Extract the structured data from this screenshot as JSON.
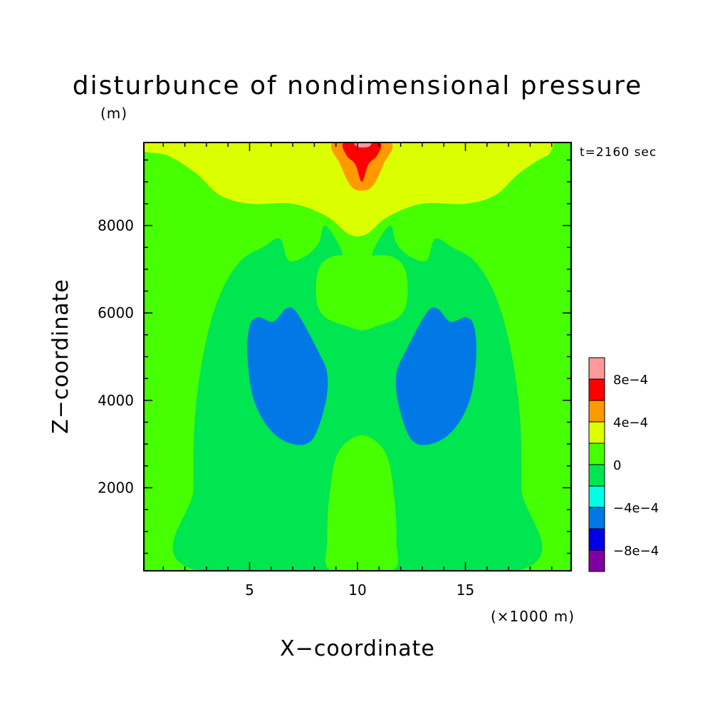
{
  "chart_data": {
    "type": "heatmap",
    "title": "disturbunce of nondimensional pressure",
    "subtitle": "(m)",
    "xlabel": "X−coordinate",
    "ylabel": "Z−coordinate",
    "x_unit_label": "(×1000 m)",
    "time_label": "t=2160 sec",
    "xlim": [
      0.1,
      19.9
    ],
    "ylim": [
      100,
      9900
    ],
    "x_ticks": [
      5,
      10,
      15
    ],
    "x_tick_labels": [
      "5",
      "10",
      "15"
    ],
    "y_ticks": [
      2000,
      4000,
      6000,
      8000
    ],
    "y_tick_labels": [
      "2000",
      "4000",
      "6000",
      "8000"
    ],
    "colorbar": {
      "levels": [
        -0.001,
        -0.0008,
        -0.0006,
        -0.0004,
        -0.0002,
        0,
        0.0002,
        0.0004,
        0.0006,
        0.0008,
        0.001
      ],
      "colors": [
        "#7f00a0",
        "#0000e6",
        "#0078e6",
        "#00ffe6",
        "#00e650",
        "#46ff00",
        "#dcff00",
        "#ff9900",
        "#ff0000",
        "#ff9999"
      ],
      "tick_values": [
        -0.0008,
        -0.0004,
        0,
        0.0004,
        0.0008
      ],
      "tick_labels": [
        "−8e−4",
        "−4e−4",
        "0",
        "4e−4",
        "8e−4"
      ]
    },
    "regions": [
      {
        "level_range": [
          0,
          0.0002
        ],
        "label": "0 to 2e-4 (green)",
        "points": [
          [
            0.1,
            9900
          ],
          [
            0.1,
            9700
          ],
          [
            1.2,
            9600
          ],
          [
            2.5,
            9200
          ],
          [
            3.6,
            8700
          ],
          [
            5,
            8500
          ],
          [
            7,
            8500
          ],
          [
            8.6,
            8200
          ],
          [
            9.6,
            7800
          ],
          [
            10.4,
            7800
          ],
          [
            11.4,
            8200
          ],
          [
            13,
            8500
          ],
          [
            15,
            8500
          ],
          [
            16.4,
            8700
          ],
          [
            17.5,
            9200
          ],
          [
            18.8,
            9600
          ],
          [
            19.9,
            9700
          ],
          [
            19.9,
            100
          ],
          [
            0.1,
            100
          ]
        ]
      },
      {
        "level_range": [
          -0.0002,
          0
        ],
        "label": "-2e-4 to 0 (outer)",
        "points": [
          [
            2.6,
            100
          ],
          [
            2.4,
            2000
          ],
          [
            2.5,
            3800
          ],
          [
            3,
            5400
          ],
          [
            3.7,
            6500
          ],
          [
            4.6,
            7200
          ],
          [
            5.6,
            7500
          ],
          [
            6.4,
            7700
          ],
          [
            6.8,
            7200
          ],
          [
            7.6,
            7300
          ],
          [
            8.2,
            7600
          ],
          [
            8.5,
            8000
          ],
          [
            9.2,
            7500
          ],
          [
            9.6,
            6900
          ],
          [
            10.4,
            6900
          ],
          [
            10.8,
            7500
          ],
          [
            11.5,
            8000
          ],
          [
            11.8,
            7600
          ],
          [
            12.4,
            7300
          ],
          [
            13.2,
            7200
          ],
          [
            13.6,
            7700
          ],
          [
            14.4,
            7500
          ],
          [
            15.4,
            7200
          ],
          [
            16.3,
            6500
          ],
          [
            17,
            5400
          ],
          [
            17.5,
            3800
          ],
          [
            17.6,
            2000
          ],
          [
            17.4,
            100
          ]
        ]
      },
      {
        "level_range": [
          0,
          0.0002
        ],
        "label": "0 to 2e-4 (upper centre)",
        "points": [
          [
            8.2,
            7000
          ],
          [
            8.1,
            6300
          ],
          [
            8.5,
            5900
          ],
          [
            9.5,
            5700
          ],
          [
            10.2,
            5600
          ],
          [
            10.9,
            5700
          ],
          [
            11.9,
            5900
          ],
          [
            12.3,
            6300
          ],
          [
            12.2,
            7000
          ],
          [
            11.5,
            7300
          ],
          [
            10.2,
            7300
          ],
          [
            8.9,
            7300
          ]
        ]
      },
      {
        "level_range": [
          0,
          0.0002
        ],
        "label": "0 to 2e-4 (lower centre)",
        "points": [
          [
            8.8,
            100
          ],
          [
            8.6,
            800
          ],
          [
            8.7,
            1800
          ],
          [
            9.1,
            2800
          ],
          [
            10.2,
            3200
          ],
          [
            11.3,
            2800
          ],
          [
            11.7,
            1800
          ],
          [
            11.8,
            800
          ],
          [
            11.6,
            100
          ]
        ]
      },
      {
        "level_range": [
          -0.0006,
          -0.0004
        ],
        "label": "-6e-4 to -4e-4 (left lobe)",
        "points": [
          [
            4.9,
            5000
          ],
          [
            5.0,
            5700
          ],
          [
            5.4,
            5900
          ],
          [
            6.1,
            5800
          ],
          [
            6.7,
            6100
          ],
          [
            7.2,
            6000
          ],
          [
            8.2,
            5100
          ],
          [
            8.6,
            4600
          ],
          [
            8.5,
            3900
          ],
          [
            7.9,
            3100
          ],
          [
            7.0,
            3000
          ],
          [
            6.0,
            3300
          ],
          [
            5.2,
            4000
          ]
        ]
      },
      {
        "level_range": [
          -0.0006,
          -0.0004
        ],
        "label": "-6e-4 to -4e-4 (right lobe)",
        "points": [
          [
            15.5,
            5000
          ],
          [
            15.4,
            5700
          ],
          [
            15.0,
            5900
          ],
          [
            14.3,
            5800
          ],
          [
            13.7,
            6100
          ],
          [
            13.2,
            6000
          ],
          [
            12.2,
            5100
          ],
          [
            11.8,
            4600
          ],
          [
            11.9,
            3900
          ],
          [
            12.5,
            3100
          ],
          [
            13.4,
            3000
          ],
          [
            14.4,
            3300
          ],
          [
            15.2,
            4000
          ]
        ]
      },
      {
        "level_range": [
          0.0004,
          0.0006
        ],
        "label": "4e-4 to 6e-4",
        "points": [
          [
            8.9,
            9900
          ],
          [
            9.2,
            9400
          ],
          [
            9.7,
            8900
          ],
          [
            10.2,
            8800
          ],
          [
            10.7,
            8900
          ],
          [
            11.2,
            9400
          ],
          [
            11.5,
            9900
          ]
        ]
      },
      {
        "level_range": [
          0.0006,
          0.0008
        ],
        "label": "6e-4 to 8e-4",
        "points": [
          [
            9.4,
            9900
          ],
          [
            9.5,
            9600
          ],
          [
            9.9,
            9400
          ],
          [
            10.2,
            9000
          ],
          [
            10.5,
            9400
          ],
          [
            10.9,
            9600
          ],
          [
            11.0,
            9900
          ]
        ]
      },
      {
        "level_range": [
          0.0008,
          0.001
        ],
        "label": "8e-4 to 1e-3",
        "points": [
          [
            9.9,
            9900
          ],
          [
            10.0,
            9800
          ],
          [
            10.5,
            9800
          ],
          [
            10.6,
            9900
          ]
        ]
      }
    ]
  }
}
